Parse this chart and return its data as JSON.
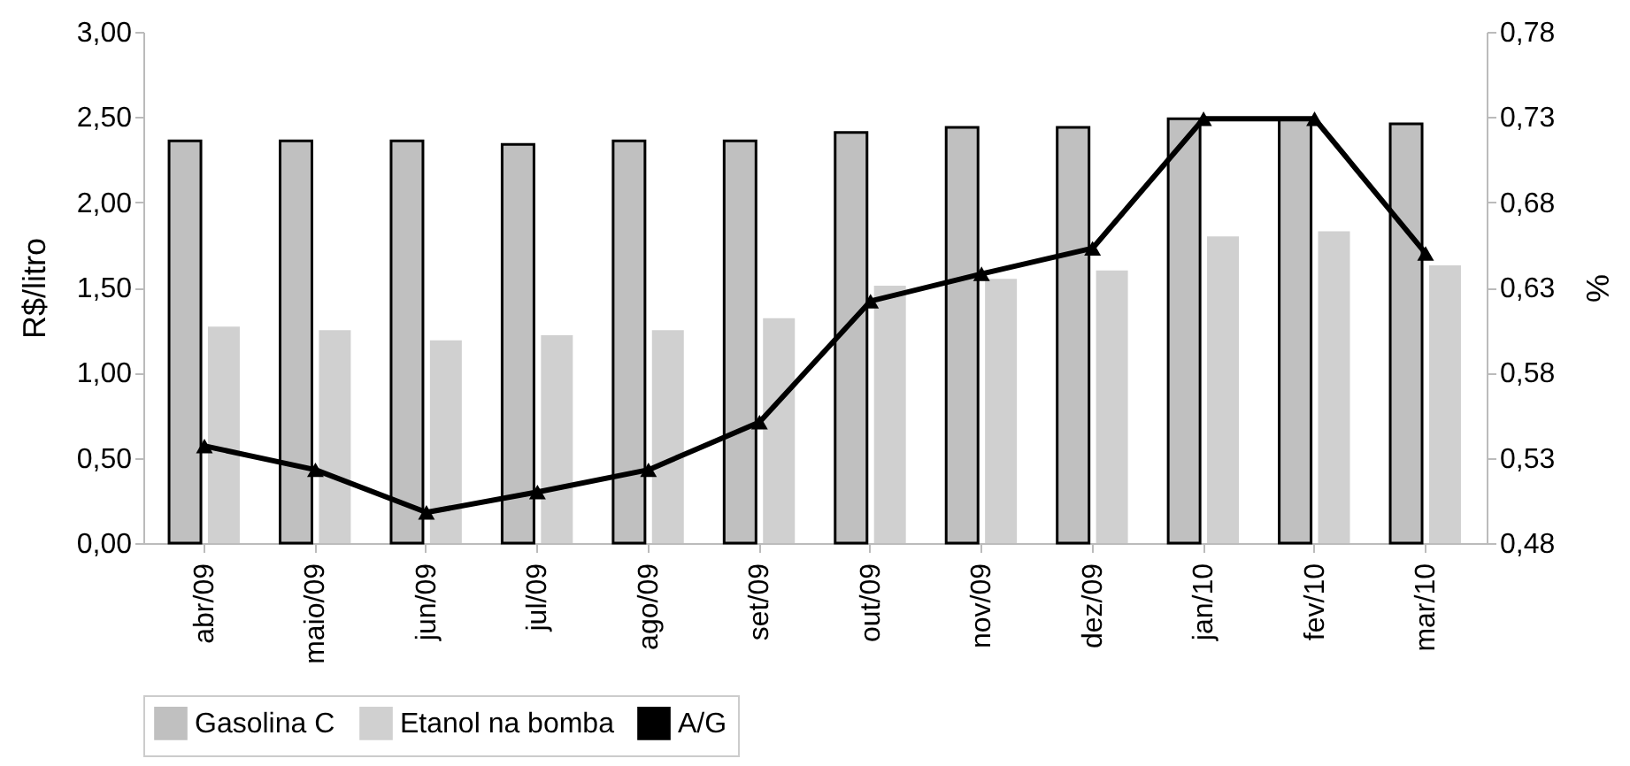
{
  "chart_data": {
    "type": "bar",
    "ylabel": "R$/litro",
    "y2label": "%",
    "categories": [
      "abr/09",
      "maio/09",
      "jun/09",
      "jul/09",
      "ago/09",
      "set/09",
      "out/09",
      "nov/09",
      "dez/09",
      "jan/10",
      "fev/10",
      "mar/10"
    ],
    "series": [
      {
        "name": "Gasolina C",
        "color": "#c0c0c0",
        "values": [
          2.36,
          2.36,
          2.36,
          2.34,
          2.36,
          2.36,
          2.41,
          2.44,
          2.44,
          2.49,
          2.49,
          2.46
        ]
      },
      {
        "name": "Etanol na bomba",
        "color": "#d0d0d0",
        "values": [
          1.27,
          1.25,
          1.19,
          1.22,
          1.25,
          1.32,
          1.51,
          1.55,
          1.6,
          1.8,
          1.83,
          1.63
        ]
      },
      {
        "name": "A/G",
        "type": "line",
        "axis": "y2",
        "color": "#000000",
        "marker": "triangle",
        "values": [
          0.537,
          0.523,
          0.498,
          0.51,
          0.523,
          0.551,
          0.622,
          0.638,
          0.653,
          0.729,
          0.729,
          0.65
        ]
      }
    ],
    "ylim": [
      0,
      3
    ],
    "yticks": [
      {
        "value": 0,
        "label": "0,00"
      },
      {
        "value": 0.5,
        "label": "0,50"
      },
      {
        "value": 1,
        "label": "1,00"
      },
      {
        "value": 1.5,
        "label": "1,50"
      },
      {
        "value": 2,
        "label": "2,00"
      },
      {
        "value": 2.5,
        "label": "2,50"
      },
      {
        "value": 3,
        "label": "3,00"
      }
    ],
    "y2lim": [
      0.48,
      0.78
    ],
    "y2ticks": [
      {
        "value": 0.48,
        "label": "0,48"
      },
      {
        "value": 0.53,
        "label": "0,53"
      },
      {
        "value": 0.58,
        "label": "0,58"
      },
      {
        "value": 0.63,
        "label": "0,63"
      },
      {
        "value": 0.68,
        "label": "0,68"
      },
      {
        "value": 0.73,
        "label": "0,73"
      },
      {
        "value": 0.78,
        "label": "0,78"
      }
    ],
    "grid": false,
    "legend": "bottom"
  }
}
